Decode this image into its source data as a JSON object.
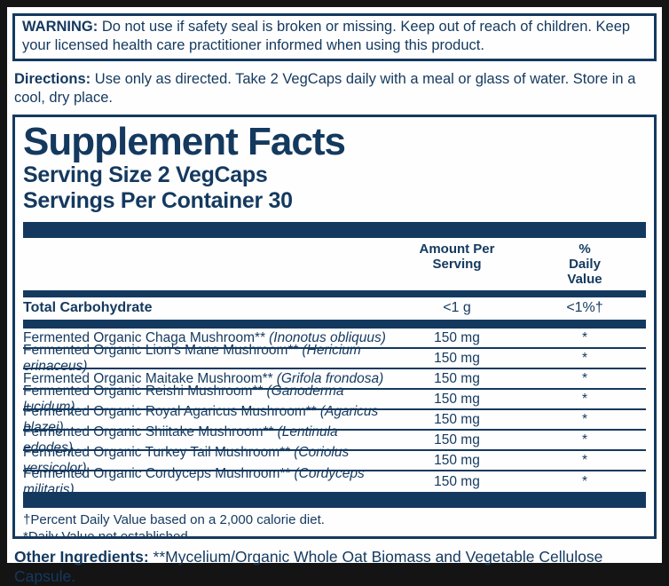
{
  "colors": {
    "navy": "#14395f",
    "paper": "#fefefe",
    "frame": "#141414"
  },
  "warning": {
    "label": "WARNING:",
    "text": " Do not use if safety seal is broken or missing. Keep out of reach of children. Keep your licensed health care practitioner informed when using this product."
  },
  "directions": {
    "label": "Directions:",
    "text": " Use only as directed. Take 2 VegCaps daily with a meal or glass of water. Store in a cool, dry place."
  },
  "panel": {
    "title": "Supplement Facts",
    "serving_size": "Serving Size 2 VegCaps",
    "servings_per_container": "Servings Per Container 30",
    "columns": {
      "amount": "Amount Per Serving",
      "daily_value": "% Daily Value"
    },
    "carbohydrate_row": {
      "name": "Total Carbohydrate",
      "amount": "<1 g",
      "daily_value": "<1%†"
    },
    "ingredients": [
      {
        "name": "Fermented Organic Chaga Mushroom**",
        "latin": "(Inonotus obliquus)",
        "amount": "150 mg",
        "daily_value": "*"
      },
      {
        "name": "Fermented Organic Lion's Mane Mushroom**",
        "latin": "(Hericium erinaceus)",
        "amount": "150 mg",
        "daily_value": "*"
      },
      {
        "name": "Fermented Organic Maitake Mushroom**",
        "latin": "(Grifola frondosa)",
        "amount": "150 mg",
        "daily_value": "*"
      },
      {
        "name": "Fermented Organic Reishi Mushroom**",
        "latin": "(Ganoderma lucidum)",
        "amount": "150 mg",
        "daily_value": "*"
      },
      {
        "name": "Fermented Organic Royal Agaricus Mushroom**",
        "latin": "(Agaricus blazei)",
        "amount": "150 mg",
        "daily_value": "*"
      },
      {
        "name": "Fermented Organic Shiitake Mushroom**",
        "latin": "(Lentinula edodes)",
        "amount": "150 mg",
        "daily_value": "*"
      },
      {
        "name": "Fermented Organic Turkey Tail Mushroom**",
        "latin": "(Coriolus versicolor)",
        "amount": "150 mg",
        "daily_value": "*"
      },
      {
        "name": "Fermented Organic Cordyceps Mushroom**",
        "latin": "(Cordyceps militaris)",
        "amount": "150 mg",
        "daily_value": "*"
      }
    ],
    "footnotes": [
      "†Percent Daily Value based on a 2,000 calorie diet.",
      "*Daily Value not established."
    ]
  },
  "other_ingredients": {
    "label": "Other Ingredients:",
    "text": " **Mycelium/Organic Whole Oat Biomass and Vegetable Cellulose Capsule."
  }
}
